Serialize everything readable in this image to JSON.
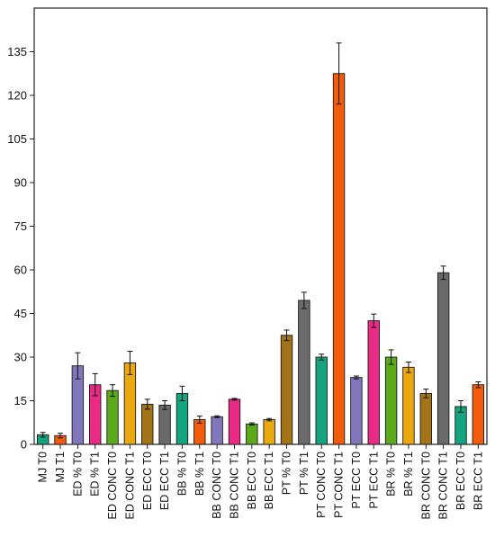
{
  "chart_data": {
    "type": "bar",
    "title": "",
    "xlabel": "",
    "ylabel": "",
    "ylim": [
      0,
      150
    ],
    "yticks": [
      0,
      15,
      30,
      45,
      60,
      75,
      90,
      105,
      120,
      135
    ],
    "grid": false,
    "legend": "none",
    "categories": [
      "MJ T0",
      "MJ T1",
      "ED % T0",
      "ED % T1",
      "ED CONC T0",
      "ED CONC T1",
      "ED ECC T0",
      "ED ECC T1",
      "BB % T0",
      "BB % T1",
      "BB CONC T0",
      "BB CONC T1",
      "BB ECC T0",
      "BB ECC T1",
      "PT % T0",
      "PT % T1",
      "PT CONC T0",
      "PT CONC T1",
      "PT ECC T0",
      "PT ECC T1",
      "BR % T0",
      "BR % T1",
      "BR CONC T0",
      "BR CONC T1",
      "BR ECC T0",
      "BR ECC T1"
    ],
    "values": [
      3.3,
      3.0,
      27.0,
      20.5,
      18.5,
      28.0,
      13.8,
      13.5,
      17.5,
      8.5,
      9.5,
      15.5,
      7.0,
      8.5,
      37.5,
      49.5,
      30.0,
      127.5,
      23.0,
      42.5,
      30.0,
      26.5,
      17.5,
      59.0,
      13.0,
      20.5
    ],
    "errors": [
      0.8,
      0.8,
      4.5,
      3.8,
      2.0,
      4.0,
      1.7,
      1.5,
      2.5,
      1.2,
      0.3,
      0.3,
      0.4,
      0.4,
      1.8,
      2.8,
      1.0,
      10.5,
      0.5,
      2.3,
      2.5,
      1.8,
      1.5,
      2.3,
      2.0,
      1.0
    ],
    "colors": [
      "#14a47f",
      "#f25c0a",
      "#8177bd",
      "#ea2a87",
      "#5aaa1c",
      "#eca80f",
      "#a37317",
      "#6a6a6a",
      "#14a47f",
      "#f25c0a",
      "#8177bd",
      "#ea2a87",
      "#5aaa1c",
      "#eca80f",
      "#a37317",
      "#6a6a6a",
      "#14a47f",
      "#f25c0a",
      "#8177bd",
      "#ea2a87",
      "#5aaa1c",
      "#eca80f",
      "#a37317",
      "#6a6a6a",
      "#14a47f",
      "#f25c0a"
    ]
  }
}
